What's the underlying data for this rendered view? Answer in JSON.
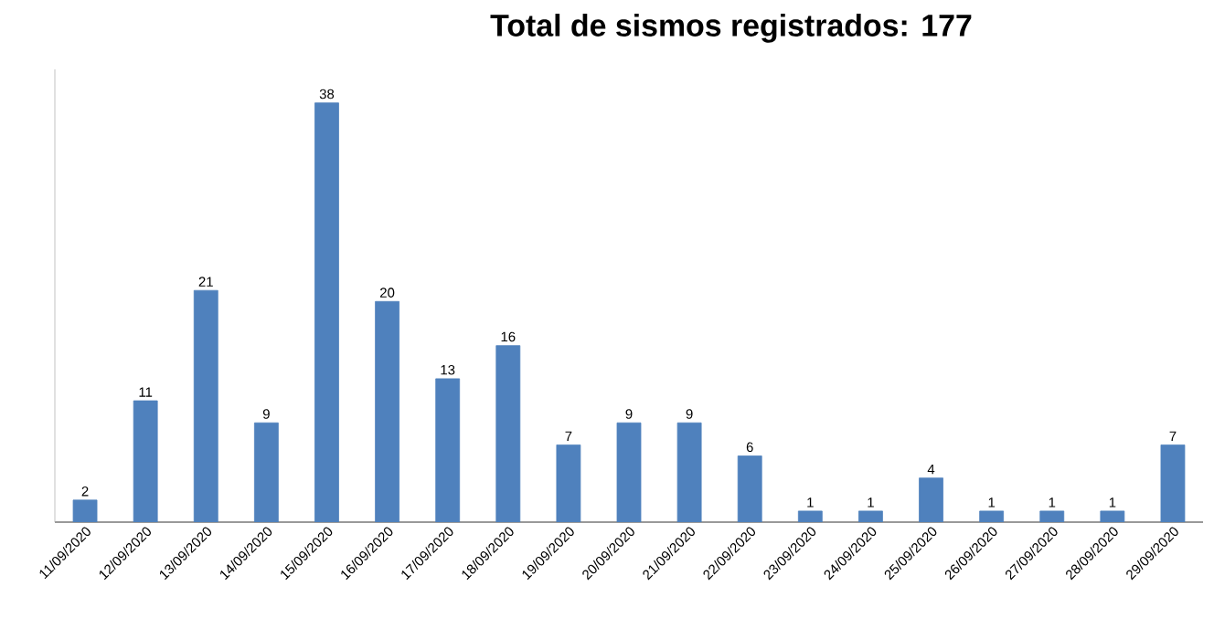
{
  "chart_data": {
    "type": "bar",
    "title": "Total de sismos registrados: 177",
    "categories": [
      "11/09/2020",
      "12/09/2020",
      "13/09/2020",
      "14/09/2020",
      "15/09/2020",
      "16/09/2020",
      "17/09/2020",
      "18/09/2020",
      "19/09/2020",
      "20/09/2020",
      "21/09/2020",
      "22/09/2020",
      "23/09/2020",
      "24/09/2020",
      "25/09/2020",
      "26/09/2020",
      "27/09/2020",
      "28/09/2020",
      "29/09/2020"
    ],
    "values": [
      2,
      11,
      21,
      9,
      38,
      20,
      13,
      16,
      7,
      9,
      9,
      6,
      1,
      1,
      4,
      1,
      1,
      1,
      7
    ],
    "color": "#4f81bd",
    "data_labels": true,
    "tick_labels": "x"
  }
}
